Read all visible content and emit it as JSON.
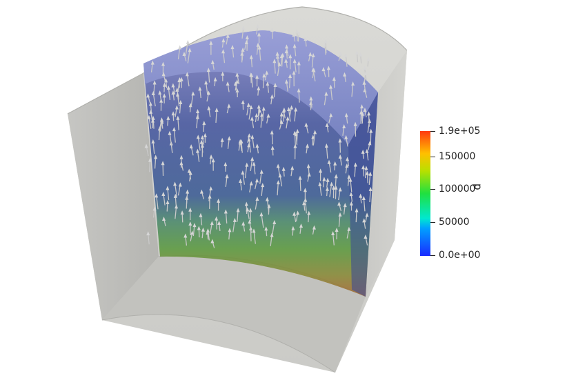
{
  "colorbar": {
    "title": "p",
    "max_label": "1.9e+05",
    "min_label": "0.0e+00",
    "labels": [
      "150000",
      "100000",
      "50000"
    ],
    "min_value": 0,
    "max_value": 190000,
    "gradient_colors": [
      "#1a2bff",
      "#00a0ff",
      "#00e8d0",
      "#20e040",
      "#b8e000",
      "#ffc000",
      "#ff3a10"
    ]
  }
}
